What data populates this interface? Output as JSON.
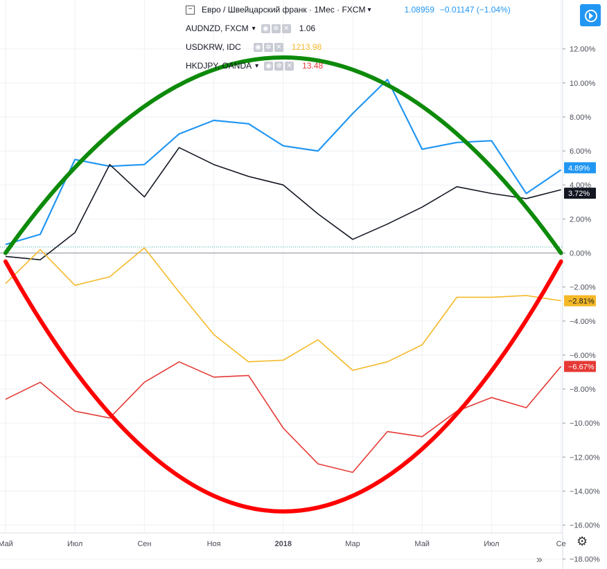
{
  "header": {
    "main_title": "Евро / Швейцарский франк · 1Мес · FXCM",
    "main_value": "1.08959",
    "main_change": "−0.01147 (−1.04%)"
  },
  "legend": [
    {
      "symbol": "AUDNZD, FXCM",
      "value": "1.06",
      "color": "#131722"
    },
    {
      "symbol": "USDKRW, IDC",
      "value": "1213.98",
      "color": "#f4b927"
    },
    {
      "symbol": "HKDJPY, OANDA",
      "value": "13.48",
      "color": "#e53935"
    }
  ],
  "icons": {
    "collapse": "minus-square-icon",
    "eye": "eye-icon",
    "settings": "gear-icon",
    "remove": "close-icon",
    "play": "play-icon",
    "chart_settings": "gear-icon",
    "scroll_forward": "double-chevron-right-icon"
  },
  "chart_data": {
    "type": "line",
    "x": [
      "2017-04",
      "2017-05",
      "2017-06",
      "2017-07",
      "2017-08",
      "2017-09",
      "2017-10",
      "2017-11",
      "2017-12",
      "2018-01",
      "2018-02",
      "2018-03",
      "2018-04",
      "2018-05",
      "2018-06",
      "2018-07",
      "2018-08",
      "2018-09"
    ],
    "x_tick_labels": [
      {
        "x": "2017-05",
        "label": "Май"
      },
      {
        "x": "2017-07",
        "label": "Июл"
      },
      {
        "x": "2017-09",
        "label": "Сен"
      },
      {
        "x": "2017-11",
        "label": "Ноя"
      },
      {
        "x": "2018-01",
        "label": "2018"
      },
      {
        "x": "2018-03",
        "label": "Мар"
      },
      {
        "x": "2018-05",
        "label": "Май"
      },
      {
        "x": "2018-07",
        "label": "Июл"
      },
      {
        "x": "2018-09",
        "label": "Се"
      }
    ],
    "y_ticks": [
      "12.00%",
      "10.00%",
      "8.00%",
      "6.00%",
      "4.00%",
      "2.00%",
      "0.00%",
      "−2.00%",
      "−4.00%",
      "−6.00%",
      "−8.00%",
      "−10.00%",
      "−12.00%",
      "−14.00%",
      "−16.00%",
      "−18.00%"
    ],
    "ylim": [
      -18.2,
      14.8
    ],
    "series": [
      {
        "color": "#2196f3",
        "values": [
          null,
          0.5,
          1.1,
          5.5,
          5.1,
          5.2,
          7.0,
          7.8,
          7.6,
          6.3,
          6.0,
          8.2,
          10.2,
          6.1,
          6.5,
          6.6,
          3.5,
          4.89
        ],
        "last_label": "4.89%"
      },
      {
        "color": "#131722",
        "values": [
          null,
          -0.2,
          -0.4,
          1.2,
          5.2,
          3.3,
          6.2,
          5.2,
          4.5,
          4.0,
          2.3,
          0.8,
          1.7,
          2.7,
          3.9,
          3.5,
          3.2,
          3.72
        ],
        "last_label": "3.72%"
      },
      {
        "color": "#f4b927",
        "values": [
          null,
          -1.8,
          0.2,
          -1.9,
          -1.4,
          0.3,
          -2.3,
          -4.8,
          -6.4,
          -6.3,
          -5.1,
          -6.9,
          -6.4,
          -5.4,
          -2.6,
          -2.6,
          -2.5,
          -2.81
        ],
        "last_label": "−2.81%"
      },
      {
        "color": "#e53935",
        "values": [
          null,
          -8.6,
          -7.6,
          -9.3,
          -9.7,
          -7.6,
          -6.4,
          -7.3,
          -7.2,
          -10.3,
          -12.4,
          -12.9,
          -10.5,
          -10.8,
          -9.3,
          -8.5,
          -9.1,
          -6.67
        ],
        "last_label": "−6.67%"
      }
    ],
    "baseline": 0.0,
    "annotations": [
      {
        "kind": "arc",
        "color": "#0d8a0a",
        "points": [
          {
            "x": "2017-05",
            "y": 0.0
          },
          {
            "x": "2018-01",
            "y": 11.5
          },
          {
            "x": "2018-09",
            "y": 0.0
          }
        ]
      },
      {
        "kind": "arc",
        "color": "#ff0000",
        "points": [
          {
            "x": "2017-05",
            "y": -0.5
          },
          {
            "x": "2018-01",
            "y": -15.2
          },
          {
            "x": "2018-09",
            "y": -0.5
          }
        ]
      }
    ]
  }
}
